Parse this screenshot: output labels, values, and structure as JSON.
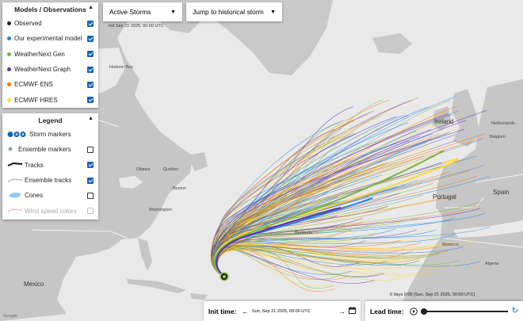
{
  "models_panel": {
    "title": "Models / Observations",
    "items": [
      {
        "label": "Observed",
        "color": "#222222",
        "checked": true
      },
      {
        "label": "Our experimental model",
        "color": "#1e88e5",
        "checked": true
      },
      {
        "label": "WeatherNext Gen",
        "color": "#7cb342",
        "checked": true
      },
      {
        "label": "WeatherNext Graph",
        "color": "#5e35b1",
        "checked": true
      },
      {
        "label": "ECMWF ENS",
        "color": "#f57c00",
        "checked": true
      },
      {
        "label": "ECMWF HRES",
        "color": "#fdd835",
        "checked": true
      }
    ]
  },
  "legend_panel": {
    "title": "Legend",
    "items": [
      {
        "label": "Storm markers",
        "icon": "storm-markers-icon",
        "checkbox": false
      },
      {
        "label": "Ensemble markers",
        "icon": "ensemble-dot-icon",
        "checked": false
      },
      {
        "label": "Tracks",
        "icon": "track-line-icon",
        "checked": true
      },
      {
        "label": "Ensemble tracks",
        "icon": "ensemble-track-icon",
        "checked": true
      },
      {
        "label": "Cones",
        "icon": "cone-icon",
        "checked": false
      },
      {
        "label": "Wind speed colors",
        "icon": "wind-color-icon",
        "checked": false,
        "disabled": true
      }
    ]
  },
  "top_controls": {
    "storms_dropdown": "Active Storms",
    "historical_dropdown": "Jump to historical storm",
    "timestamp": "Init Sep 21 2025, 00:00 UTC"
  },
  "init_bar": {
    "label": "Init time:",
    "value": "Sun, Sep 21 2025, 00:00 UTC"
  },
  "lead_bar": {
    "label": "Lead time:",
    "readout": "0 days 0:00 (Sun, Sep 21 2025, 00:00 UTC)"
  },
  "map_labels": {
    "hudson_bay": "Hudson Bay",
    "boston": "Boston",
    "washington": "Washington",
    "ottawa": "Ottawa",
    "quebec": "Québec",
    "mexico": "Mexico",
    "ireland": "Ireland",
    "portugal": "Portugal",
    "morocco": "Morocco",
    "netherlands": "Netherlands",
    "belgium": "Belgium",
    "spain": "Spain",
    "algeria": "Algeria",
    "bermuda": "Bermuda",
    "google": "Google"
  },
  "colors": {
    "ocean": "#e9e9e9",
    "land": "#c7c7c7",
    "accent": "#1565c0"
  }
}
